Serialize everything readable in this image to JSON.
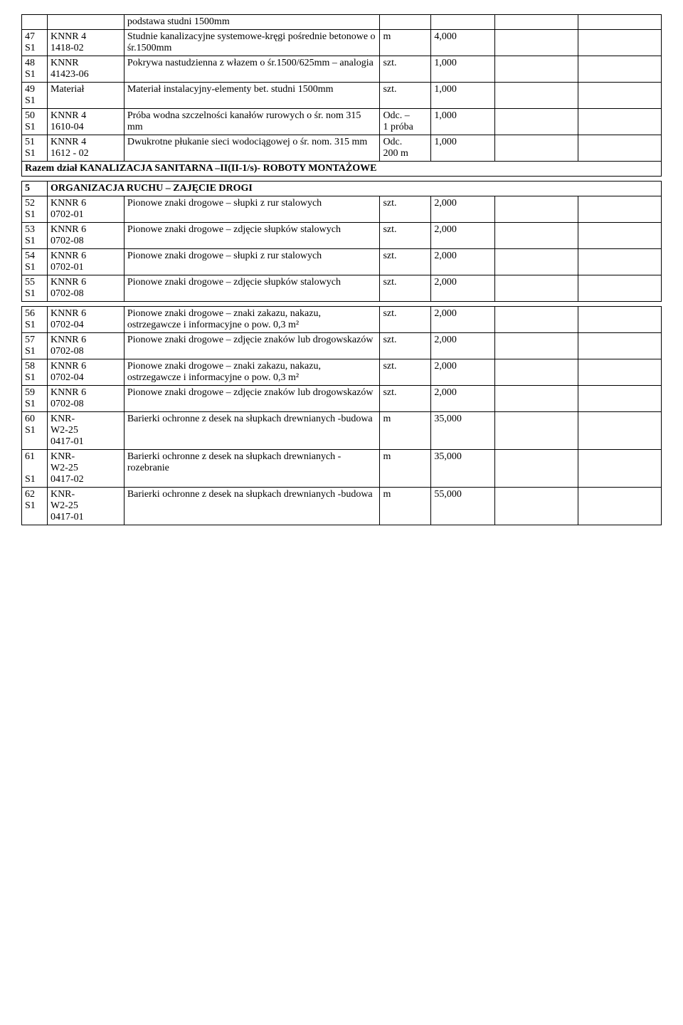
{
  "table1": {
    "rows": [
      {
        "num": "",
        "code": "",
        "desc": "podstawa studni 1500mm",
        "unit": "",
        "qty": ""
      },
      {
        "num": "47\nS1",
        "code": "KNNR 4\n1418-02",
        "desc": "Studnie kanalizacyjne systemowe-kręgi pośrednie betonowe o śr.1500mm",
        "unit": "m",
        "qty": "4,000"
      },
      {
        "num": "48\nS1",
        "code": "KNNR\n41423-06",
        "desc": "Pokrywa nastudzienna z włazem o śr.1500/625mm – analogia",
        "unit": "szt.",
        "qty": "1,000"
      },
      {
        "num": "49\nS1",
        "code": "Materiał",
        "desc": "Materiał instalacyjny-elementy bet. studni 1500mm",
        "unit": "szt.",
        "qty": "1,000"
      },
      {
        "num": "50\nS1",
        "code": "KNNR 4\n1610-04",
        "desc": "Próba wodna szczelności kanałów rurowych o śr. nom 315 mm",
        "unit": "Odc. –\n1 próba",
        "qty": "1,000"
      },
      {
        "num": "51\nS1",
        "code": "KNNR 4\n1612 - 02",
        "desc": "Dwukrotne płukanie sieci wodociągowej o śr. nom. 315 mm",
        "unit": "Odc.\n200 m",
        "qty": "1,000"
      }
    ],
    "summary": "Razem dział KANALIZACJA SANITARNA –II(II-1/s)- ROBOTY MONTAŻOWE"
  },
  "table2": {
    "section_num": "5",
    "section_title": "ORGANIZACJA RUCHU – ZAJĘCIE DROGI",
    "rows": [
      {
        "num": "52\nS1",
        "code": "KNNR 6\n0702-01",
        "desc": "Pionowe znaki drogowe – słupki z rur stalowych",
        "unit": "szt.",
        "qty": "2,000"
      },
      {
        "num": "53\nS1",
        "code": "KNNR 6\n0702-08",
        "desc": "Pionowe znaki drogowe – zdjęcie słupków stalowych",
        "unit": "szt.",
        "qty": "2,000"
      },
      {
        "num": "54\nS1",
        "code": "KNNR 6\n0702-01",
        "desc": "Pionowe znaki drogowe – słupki z rur stalowych",
        "unit": "szt.",
        "qty": "2,000"
      },
      {
        "num": "55\nS1",
        "code": "KNNR 6\n0702-08",
        "desc": "Pionowe znaki drogowe – zdjęcie słupków stalowych",
        "unit": "szt.",
        "qty": "2,000"
      }
    ]
  },
  "table3": {
    "rows": [
      {
        "num": "56\nS1",
        "code": "KNNR 6\n0702-04",
        "desc": "Pionowe znaki drogowe – znaki zakazu, nakazu, ostrzegawcze i informacyjne o pow. 0,3 m²",
        "unit": "szt.",
        "qty": "2,000"
      },
      {
        "num": "57\nS1",
        "code": "KNNR 6\n0702-08",
        "desc": "Pionowe znaki drogowe – zdjęcie znaków lub drogowskazów",
        "unit": "szt.",
        "qty": "2,000"
      },
      {
        "num": "58\nS1",
        "code": "KNNR 6\n0702-04",
        "desc": "Pionowe znaki drogowe – znaki zakazu, nakazu, ostrzegawcze i informacyjne o pow. 0,3 m²",
        "unit": "szt.",
        "qty": "2,000"
      },
      {
        "num": "59\nS1",
        "code": "KNNR 6\n0702-08",
        "desc": "Pionowe znaki drogowe – zdjęcie znaków lub drogowskazów",
        "unit": "szt.",
        "qty": "2,000"
      },
      {
        "num": "60\nS1",
        "code": "KNR-\nW2-25\n0417-01",
        "desc": "Barierki ochronne z desek na słupkach drewnianych -budowa",
        "unit": "m",
        "qty": "35,000"
      },
      {
        "num": "61\n\nS1",
        "code": "KNR-\nW2-25\n0417-02",
        "desc": "Barierki ochronne z desek na słupkach drewnianych -rozebranie",
        "unit": "m",
        "qty": "35,000"
      },
      {
        "num": "62\nS1",
        "code": "KNR-\nW2-25\n0417-01",
        "desc": "Barierki ochronne z desek na słupkach drewnianych -budowa",
        "unit": "m",
        "qty": "55,000"
      }
    ]
  }
}
